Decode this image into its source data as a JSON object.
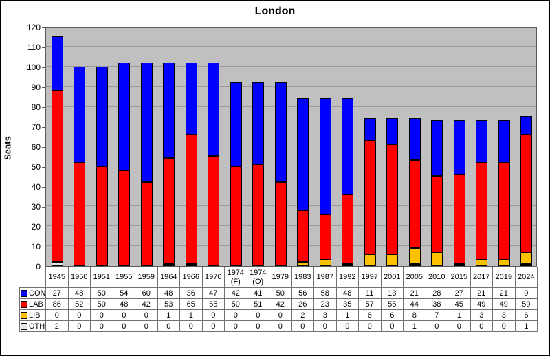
{
  "chart_data": {
    "type": "bar",
    "stacked": true,
    "title": "London",
    "ylabel": "Seats",
    "ylim": [
      0,
      120
    ],
    "ytick_step": 10,
    "grid": true,
    "legend_position": "data-table-left",
    "categories": [
      "1945",
      "1950",
      "1951",
      "1955",
      "1959",
      "1964",
      "1966",
      "1970",
      "1974 (F)",
      "1974 (O)",
      "1979",
      "1983",
      "1987",
      "1992",
      "1997",
      "2001",
      "2005",
      "2010",
      "2015",
      "2017",
      "2019",
      "2024"
    ],
    "series": [
      {
        "name": "CON",
        "color": "#0000FF",
        "values": [
          27,
          48,
          50,
          54,
          60,
          48,
          36,
          47,
          42,
          41,
          50,
          56,
          58,
          48,
          11,
          13,
          21,
          28,
          27,
          21,
          21,
          9
        ]
      },
      {
        "name": "LAB",
        "color": "#FF0000",
        "values": [
          86,
          52,
          50,
          48,
          42,
          53,
          65,
          55,
          50,
          51,
          42,
          26,
          23,
          35,
          57,
          55,
          44,
          38,
          45,
          49,
          49,
          59
        ]
      },
      {
        "name": "LIB",
        "color": "#FFC000",
        "values": [
          0,
          0,
          0,
          0,
          0,
          1,
          1,
          0,
          0,
          0,
          0,
          2,
          3,
          1,
          6,
          6,
          8,
          7,
          1,
          3,
          3,
          6
        ]
      },
      {
        "name": "OTH",
        "color": "#E8E8E8",
        "values": [
          2,
          0,
          0,
          0,
          0,
          0,
          0,
          0,
          0,
          0,
          0,
          0,
          0,
          0,
          0,
          0,
          1,
          0,
          0,
          0,
          0,
          1
        ]
      }
    ],
    "stack_order_bottom_to_top": [
      "OTH",
      "LIB",
      "LAB",
      "CON"
    ],
    "colors": {
      "plot_background": "#C0C0C0",
      "gridline": "#9A9A9A",
      "bar_border": "#000000",
      "plot_border": "#5A5A5A",
      "table_border": "#707070",
      "frame_border": "#000000",
      "background": "#FFFFFF",
      "text": "#000000"
    }
  }
}
